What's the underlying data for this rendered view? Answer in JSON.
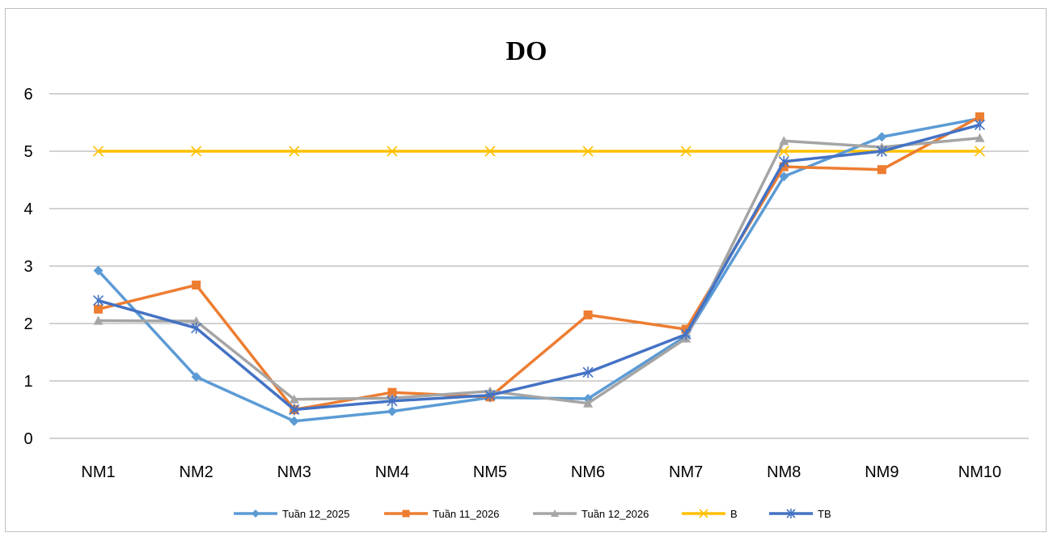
{
  "chart_data": {
    "type": "line",
    "title": "DO",
    "xlabel": "",
    "ylabel": "",
    "categories": [
      "NM1",
      "NM2",
      "NM3",
      "NM4",
      "NM5",
      "NM6",
      "NM7",
      "NM8",
      "NM9",
      "NM10"
    ],
    "ylim": [
      0,
      6
    ],
    "yticks": [
      "0",
      "1",
      "2",
      "3",
      "4",
      "5",
      "6"
    ],
    "grid": true,
    "legend_position": "bottom",
    "series": [
      {
        "name": "Tuần 12_2025",
        "color": "#5b9bd5",
        "marker": "diamond",
        "values": [
          2.92,
          1.07,
          0.3,
          0.47,
          0.71,
          0.69,
          1.78,
          4.56,
          5.25,
          5.57
        ]
      },
      {
        "name": "Tuần 11_2026",
        "color": "#ed7d31",
        "marker": "square",
        "values": [
          2.25,
          2.67,
          0.5,
          0.8,
          0.72,
          2.15,
          1.9,
          4.73,
          4.68,
          5.6
        ]
      },
      {
        "name": "Tuần 12_2026",
        "color": "#a5a5a5",
        "marker": "triangle",
        "values": [
          2.05,
          2.04,
          0.68,
          0.7,
          0.82,
          0.61,
          1.74,
          5.18,
          5.07,
          5.23
        ]
      },
      {
        "name": "B",
        "color": "#ffc000",
        "marker": "x",
        "values": [
          5,
          5,
          5,
          5,
          5,
          5,
          5,
          5,
          5,
          5
        ]
      },
      {
        "name": "TB",
        "color": "#4472c4",
        "marker": "star",
        "values": [
          2.4,
          1.92,
          0.5,
          0.65,
          0.75,
          1.15,
          1.81,
          4.82,
          5.0,
          5.46
        ]
      }
    ]
  }
}
